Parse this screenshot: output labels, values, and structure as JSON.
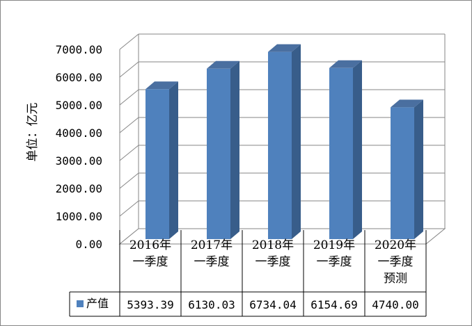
{
  "chart_data": {
    "type": "bar",
    "ylabel": "单位：亿元",
    "ylim": [
      0,
      7000
    ],
    "yticks": [
      "0.00",
      "1000.00",
      "2000.00",
      "3000.00",
      "4000.00",
      "5000.00",
      "6000.00",
      "7000.00"
    ],
    "categories": [
      [
        "2016年",
        "一季度"
      ],
      [
        "2017年",
        "一季度"
      ],
      [
        "2018年",
        "一季度"
      ],
      [
        "2019年",
        "一季度"
      ],
      [
        "2020年",
        "一季度",
        "预测"
      ]
    ],
    "series": [
      {
        "name": "产值",
        "values": [
          5393.39,
          6130.03,
          6734.04,
          6154.69,
          4740.0
        ],
        "value_labels": [
          "5393.39",
          "6130.03",
          "6734.04",
          "6154.69",
          "4740.00"
        ]
      }
    ],
    "grid": true,
    "legend": "data-table-left",
    "colors": {
      "bar_front": "#4f81bd",
      "bar_side": "#385d8a",
      "bar_top": "#4a6fa0",
      "grid": "#868686",
      "wall": "#ffffff"
    }
  }
}
